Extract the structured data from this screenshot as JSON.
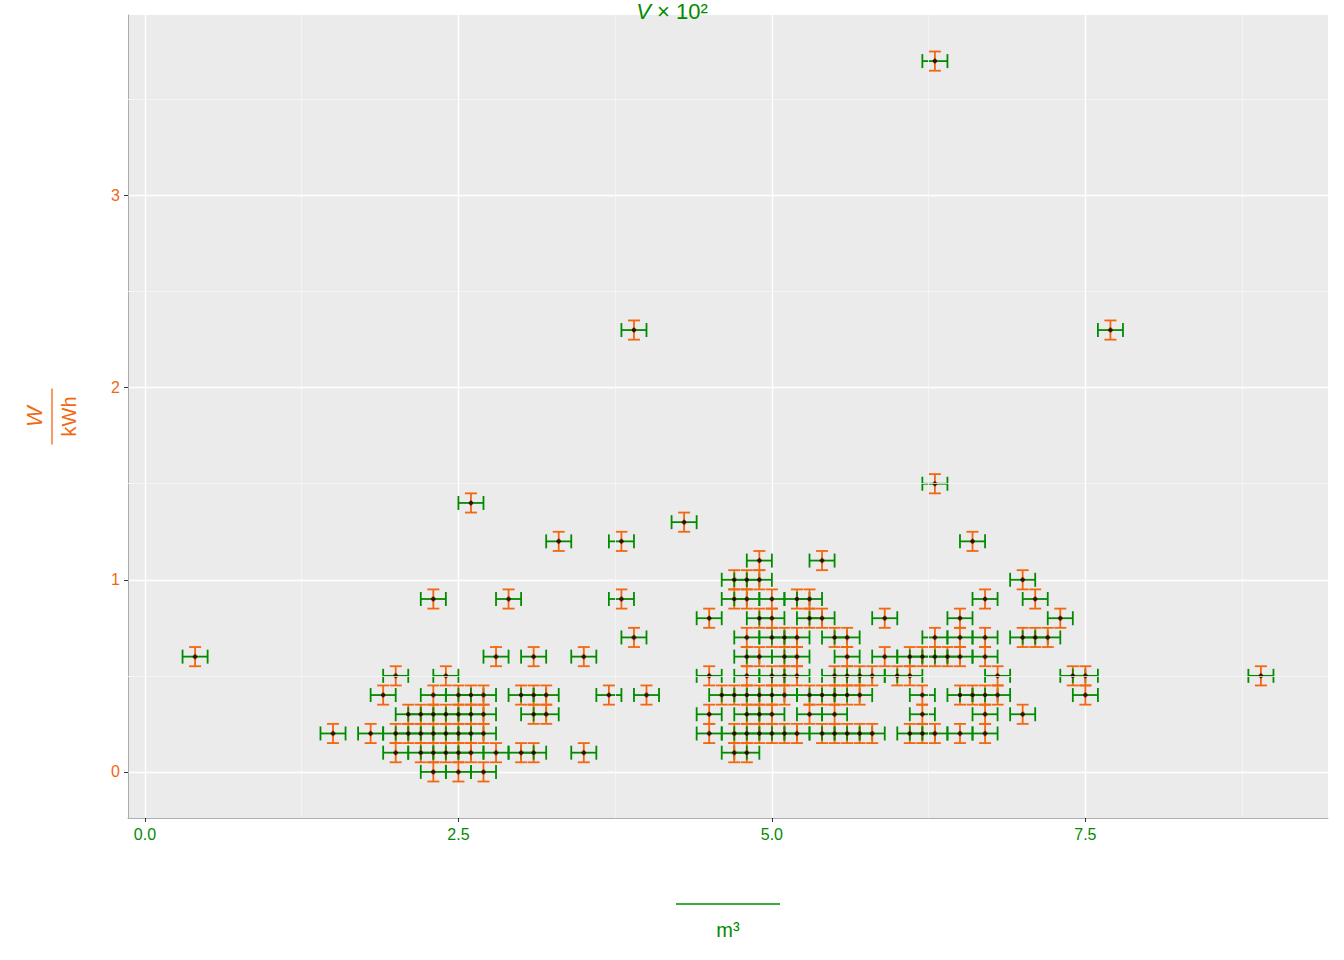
{
  "chart_data": {
    "type": "scatter",
    "x_label": {
      "numerator": "V × 10²",
      "denominator": "m³"
    },
    "y_label": {
      "numerator": "W",
      "denominator": "kWh"
    },
    "x": [
      0.4,
      1.5,
      1.8,
      1.9,
      2.0,
      2.0,
      2.0,
      2.3,
      2.6,
      2.9,
      3.3,
      3.8,
      3.8,
      3.9,
      3.9,
      4.3,
      6.3,
      7.7,
      6.3,
      6.6,
      7.0,
      7.1,
      7.3,
      7.0,
      7.1,
      7.2,
      7.4,
      7.5,
      7.5,
      8.9,
      7.0,
      2.4,
      2.1,
      2.1,
      2.2,
      2.2,
      2.2,
      2.3,
      2.3,
      2.3,
      2.3,
      2.3,
      2.4,
      2.4,
      2.4,
      2.5,
      2.5,
      2.5,
      2.5,
      2.5,
      2.6,
      2.6,
      2.6,
      2.6,
      2.7,
      2.7,
      2.7,
      2.7,
      2.8,
      2.8,
      3.0,
      3.1,
      3.1,
      3.1,
      3.1,
      3.0,
      3.2,
      3.2,
      3.5,
      3.5,
      3.7,
      4.0,
      4.5,
      4.5,
      4.5,
      4.5,
      4.6,
      4.7,
      4.7,
      4.7,
      4.7,
      4.8,
      4.8,
      4.8,
      4.8,
      4.8,
      4.8,
      4.8,
      4.8,
      4.8,
      4.7,
      4.9,
      4.9,
      4.9,
      4.9,
      4.9,
      4.9,
      4.9,
      5.0,
      5.0,
      5.0,
      5.0,
      5.0,
      5.0,
      5.0,
      5.1,
      5.1,
      5.1,
      5.1,
      5.1,
      5.2,
      5.2,
      5.2,
      5.2,
      5.2,
      5.3,
      5.3,
      5.3,
      5.3,
      5.4,
      5.4,
      5.4,
      5.4,
      5.5,
      5.5,
      5.5,
      5.5,
      5.5,
      5.6,
      5.6,
      5.6,
      5.6,
      5.6,
      5.7,
      5.7,
      5.7,
      5.8,
      5.8,
      5.9,
      5.9,
      6.0,
      6.1,
      6.1,
      6.1,
      6.2,
      6.2,
      6.2,
      6.2,
      6.3,
      6.3,
      6.3,
      6.4,
      6.5,
      6.5,
      6.5,
      6.5,
      6.5,
      6.6,
      6.7,
      6.7,
      6.7,
      6.7,
      6.7,
      6.7,
      6.8,
      6.8
    ],
    "values": [
      0.6,
      0.2,
      0.2,
      0.4,
      0.5,
      0.1,
      0.2,
      0.9,
      1.4,
      0.9,
      1.2,
      1.2,
      0.9,
      2.3,
      0.7,
      1.3,
      3.7,
      2.3,
      1.5,
      1.2,
      1.0,
      0.9,
      0.8,
      0.7,
      0.7,
      0.7,
      0.5,
      0.5,
      0.4,
      0.5,
      0.3,
      0.5,
      0.3,
      0.2,
      0.3,
      0.2,
      0.1,
      0.4,
      0.3,
      0.2,
      0.1,
      0.0,
      0.3,
      0.2,
      0.1,
      0.4,
      0.3,
      0.2,
      0.1,
      0.0,
      0.4,
      0.3,
      0.2,
      0.1,
      0.4,
      0.3,
      0.2,
      0.0,
      0.1,
      0.6,
      0.4,
      0.6,
      0.4,
      0.3,
      0.1,
      0.1,
      0.4,
      0.3,
      0.6,
      0.1,
      0.4,
      0.4,
      0.8,
      0.5,
      0.3,
      0.2,
      0.4,
      1.0,
      0.9,
      0.4,
      0.2,
      1.0,
      0.9,
      0.7,
      0.6,
      0.5,
      0.4,
      0.3,
      0.2,
      0.1,
      0.1,
      1.1,
      1.0,
      0.8,
      0.6,
      0.4,
      0.3,
      0.2,
      0.9,
      0.8,
      0.7,
      0.5,
      0.4,
      0.3,
      0.2,
      0.7,
      0.6,
      0.5,
      0.4,
      0.2,
      0.9,
      0.7,
      0.6,
      0.5,
      0.2,
      0.9,
      0.8,
      0.4,
      0.3,
      1.1,
      0.8,
      0.4,
      0.2,
      0.7,
      0.5,
      0.4,
      0.3,
      0.2,
      0.7,
      0.6,
      0.5,
      0.4,
      0.2,
      0.5,
      0.4,
      0.2,
      0.5,
      0.2,
      0.8,
      0.6,
      0.5,
      0.6,
      0.5,
      0.2,
      0.6,
      0.4,
      0.3,
      0.2,
      0.7,
      0.6,
      0.2,
      0.6,
      0.8,
      0.7,
      0.6,
      0.4,
      0.2,
      0.4,
      0.9,
      0.7,
      0.6,
      0.4,
      0.3,
      0.2,
      0.5,
      0.4
    ],
    "x_error": 0.1,
    "y_error": 0.05,
    "xlim": [
      -0.135,
      9.435
    ],
    "ylim": [
      -0.24,
      3.94
    ],
    "xticks": [
      {
        "value": 0,
        "label": "0.0"
      },
      2.5,
      {
        "value": 5,
        "label": "5.0"
      },
      7.5
    ],
    "yticks": [
      0,
      1,
      2,
      3
    ],
    "grid": true,
    "marker": "diamond",
    "color": "#000000"
  }
}
